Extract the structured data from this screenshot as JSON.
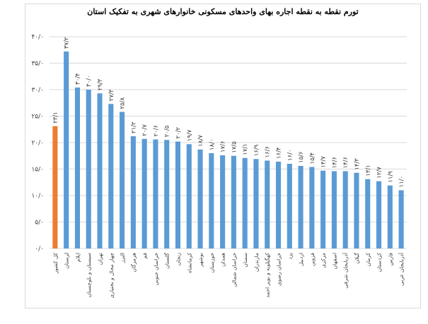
{
  "chart_data": {
    "type": "bar",
    "title": "تورم نقطه به نقطه  اجاره بهای واحدهای مسکونی خانوارهای شهری به تفکیک استان",
    "xlabel": "",
    "ylabel": "",
    "ylim": [
      0,
      40
    ],
    "yticks": [
      0,
      5,
      10,
      15,
      20,
      25,
      30,
      35,
      40
    ],
    "ytick_labels": [
      "۰/۰",
      "۵/۰",
      "۱۰/۰",
      "۱۵/۰",
      "۲۰/۰",
      "۲۵/۰",
      "۳۰/۰",
      "۳۵/۰",
      "۴۰/۰"
    ],
    "grid": true,
    "legend": "none",
    "categories": [
      "کل کشور",
      "لرستان",
      "ایلام",
      "سیستان و بلوچستان",
      "تهران",
      "چهار محال و بختیاری",
      "البرز",
      "هرمزگان",
      "قم",
      "خراسان جنوبی",
      "گلستان",
      "زنجان",
      "کرمانشاه",
      "بوشهر",
      "خوزستان",
      "همدان",
      "خراسان شمالی",
      "سمنان",
      "مازندران",
      "کهگیلویه و بویر احمد",
      "خراسان رضوی",
      "یزد",
      "اردبیل",
      "قزوین",
      "مرکزی",
      "اصفهان",
      "آذربایجان شرقی",
      "گیلان",
      "کرمان",
      "کردستان",
      "فارس",
      "آذربایجان غربی"
    ],
    "values": [
      23.1,
      37.2,
      30.4,
      30.0,
      29.3,
      27.3,
      25.8,
      21.2,
      20.7,
      20.6,
      20.5,
      20.2,
      19.7,
      18.7,
      18.0,
      17.6,
      17.5,
      17.1,
      16.9,
      16.6,
      16.4,
      16.0,
      15.6,
      15.4,
      14.7,
      14.6,
      14.6,
      14.3,
      13.1,
      12.7,
      11.9,
      11.0
    ],
    "value_labels": [
      "۲۳/۱",
      "۳۷/۲",
      "۳۰/۴",
      "۳۰/۰",
      "۲۹/۳",
      "۲۷/۳",
      "۲۵/۸",
      "۲۱/۲",
      "۲۰/۷",
      "۲۰/۶",
      "۲۰/۵",
      "۲۰/۲",
      "۱۹/۷",
      "۱۸/۷",
      "۱۸/۰",
      "۱۷/۶",
      "۱۷/۵",
      "۱۷/۱",
      "۱۶/۹",
      "۱۶/۶",
      "۱۶/۴",
      "۱۶/۰",
      "۱۵/۶",
      "۱۵/۴",
      "۱۴/۷",
      "۱۴/۶",
      "۱۴/۶",
      "۱۴/۳",
      "۱۳/۱",
      "۱۲/۷",
      "۱۱/۹",
      "۱۱/۰"
    ],
    "colors": {
      "highlight": "#ed7d31",
      "default": "#5b9bd5",
      "grid": "#d9d9d9",
      "text": "#404040"
    }
  }
}
